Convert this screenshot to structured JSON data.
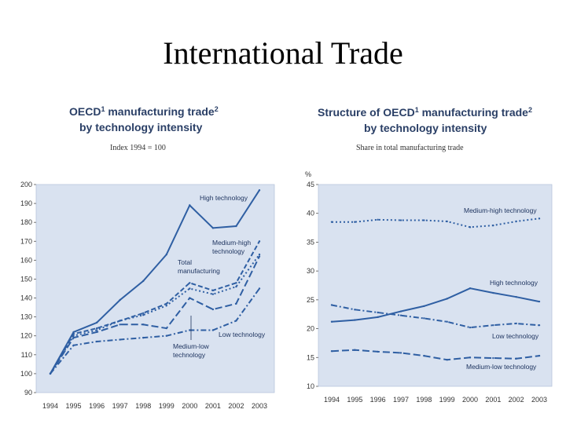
{
  "slide": {
    "title": "International Trade"
  },
  "colors": {
    "plot_bg": "#d9e2f0",
    "line": "#2f5fa3",
    "title": "#2a3f66"
  },
  "chart_data": [
    {
      "type": "line",
      "title_line1": "OECD",
      "title_sup1": "1",
      "title_rest": " manufacturing trade",
      "title_sup2": "2",
      "title_line2": "by technology intensity",
      "subtitle": "Index 1994 = 100",
      "ylabel": "",
      "xlabel": "",
      "ylim": [
        90,
        200
      ],
      "yticks": [
        "200",
        "190",
        "180",
        "170",
        "160",
        "150",
        "140",
        "130",
        "120",
        "110",
        "100",
        "90"
      ],
      "x": [
        "1994",
        "1995",
        "1996",
        "1997",
        "1998",
        "1999",
        "2000",
        "2001",
        "2002",
        "2003"
      ],
      "grid": false,
      "legend": "none",
      "series": [
        {
          "name": "High technology",
          "dash": "solid",
          "values": [
            100,
            122,
            127,
            139,
            149,
            163,
            189,
            177,
            178,
            197
          ]
        },
        {
          "name": "Medium-high technology",
          "dash": "dash",
          "values": [
            100,
            121,
            124,
            128,
            132,
            137,
            148,
            144,
            148,
            170
          ]
        },
        {
          "name": "Total manufacturing",
          "dash": "dot",
          "values": [
            100,
            120,
            123,
            128,
            131,
            136,
            145,
            142,
            146,
            163
          ]
        },
        {
          "name": "Low technology",
          "dash": "longdash",
          "values": [
            100,
            119,
            122,
            126,
            126,
            124,
            140,
            134,
            137,
            162
          ]
        },
        {
          "name": "Medium-low technology",
          "dash": "dashdot",
          "values": [
            100,
            115,
            117,
            118,
            119,
            120,
            123,
            123,
            128,
            145
          ]
        }
      ],
      "annotations": [
        {
          "lines": [
            "High technology"
          ],
          "series": 0
        },
        {
          "lines": [
            "Medium-high",
            "technology"
          ],
          "series": 1
        },
        {
          "lines": [
            "Total",
            "manufacturing"
          ],
          "series": 2
        },
        {
          "lines": [
            "Low technology"
          ],
          "series": 3
        },
        {
          "lines": [
            "Medium-low",
            "technology"
          ],
          "series": 4
        }
      ]
    },
    {
      "type": "line",
      "title_line1": "Structure of OECD",
      "title_sup1": "1",
      "title_rest": " manufacturing trade",
      "title_sup2": "2",
      "title_line2": "by technology intensity",
      "subtitle": "Share in total manufacturing trade",
      "ylabel": "%",
      "xlabel": "",
      "ylim": [
        10,
        45
      ],
      "yticks": [
        "45",
        "40",
        "35",
        "30",
        "25",
        "20",
        "15",
        "10"
      ],
      "x": [
        "1994",
        "1995",
        "1996",
        "1997",
        "1998",
        "1999",
        "2000",
        "2001",
        "2002",
        "2003"
      ],
      "grid": false,
      "legend": "none",
      "series": [
        {
          "name": "Medium-high technology",
          "dash": "dot",
          "values": [
            38.5,
            38.5,
            38.9,
            38.8,
            38.8,
            38.6,
            37.6,
            37.9,
            38.6,
            39.1
          ]
        },
        {
          "name": "High technology",
          "dash": "solid",
          "values": [
            21.2,
            21.5,
            22.0,
            23.0,
            23.9,
            25.2,
            27.0,
            26.2,
            25.5,
            24.7
          ]
        },
        {
          "name": "Low technology",
          "dash": "dashdot",
          "values": [
            24.1,
            23.3,
            22.8,
            22.3,
            21.8,
            21.2,
            20.2,
            20.6,
            20.9,
            20.6
          ]
        },
        {
          "name": "Medium-low technology",
          "dash": "longdash",
          "values": [
            16.1,
            16.3,
            16.0,
            15.8,
            15.3,
            14.6,
            15.0,
            14.9,
            14.8,
            15.3
          ]
        }
      ],
      "annotations": [
        {
          "lines": [
            "Medium-high technology"
          ],
          "series": 0
        },
        {
          "lines": [
            "High technology"
          ],
          "series": 1
        },
        {
          "lines": [
            "Low technology"
          ],
          "series": 2
        },
        {
          "lines": [
            "Medium-low technology"
          ],
          "series": 3
        }
      ]
    }
  ]
}
